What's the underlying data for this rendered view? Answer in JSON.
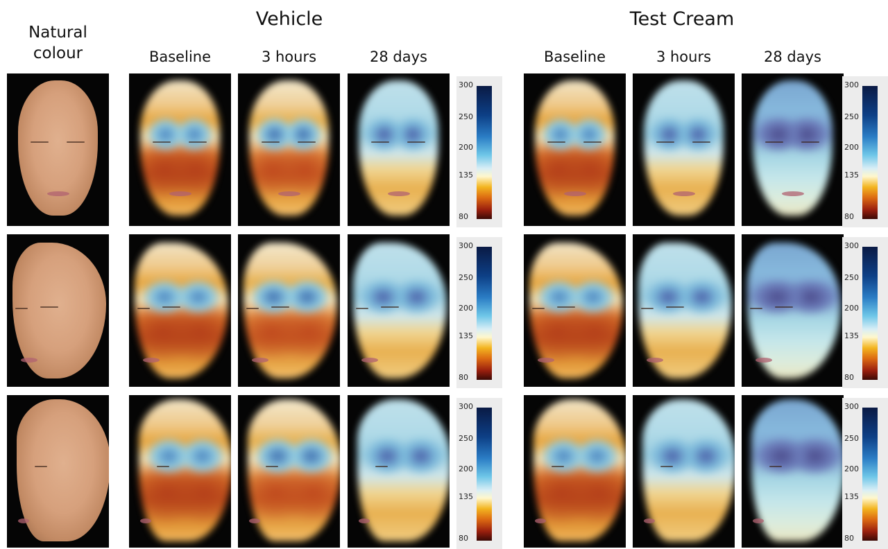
{
  "headers": {
    "natural_colour": "Natural\ncolour",
    "vehicle": "Vehicle",
    "test_cream": "Test Cream",
    "baseline": "Baseline",
    "three_hours": "3 hours",
    "twenty_eight_days": "28 days"
  },
  "scale_ticks": [
    "300",
    "250",
    "200",
    "135",
    "80"
  ],
  "colors": {
    "skin": "#d6a07c",
    "scale_top": "#0a1a44",
    "scale_mid": "#6fc7e8",
    "scale_warm": "#f3b520",
    "scale_bottom": "#3a0a06"
  }
}
